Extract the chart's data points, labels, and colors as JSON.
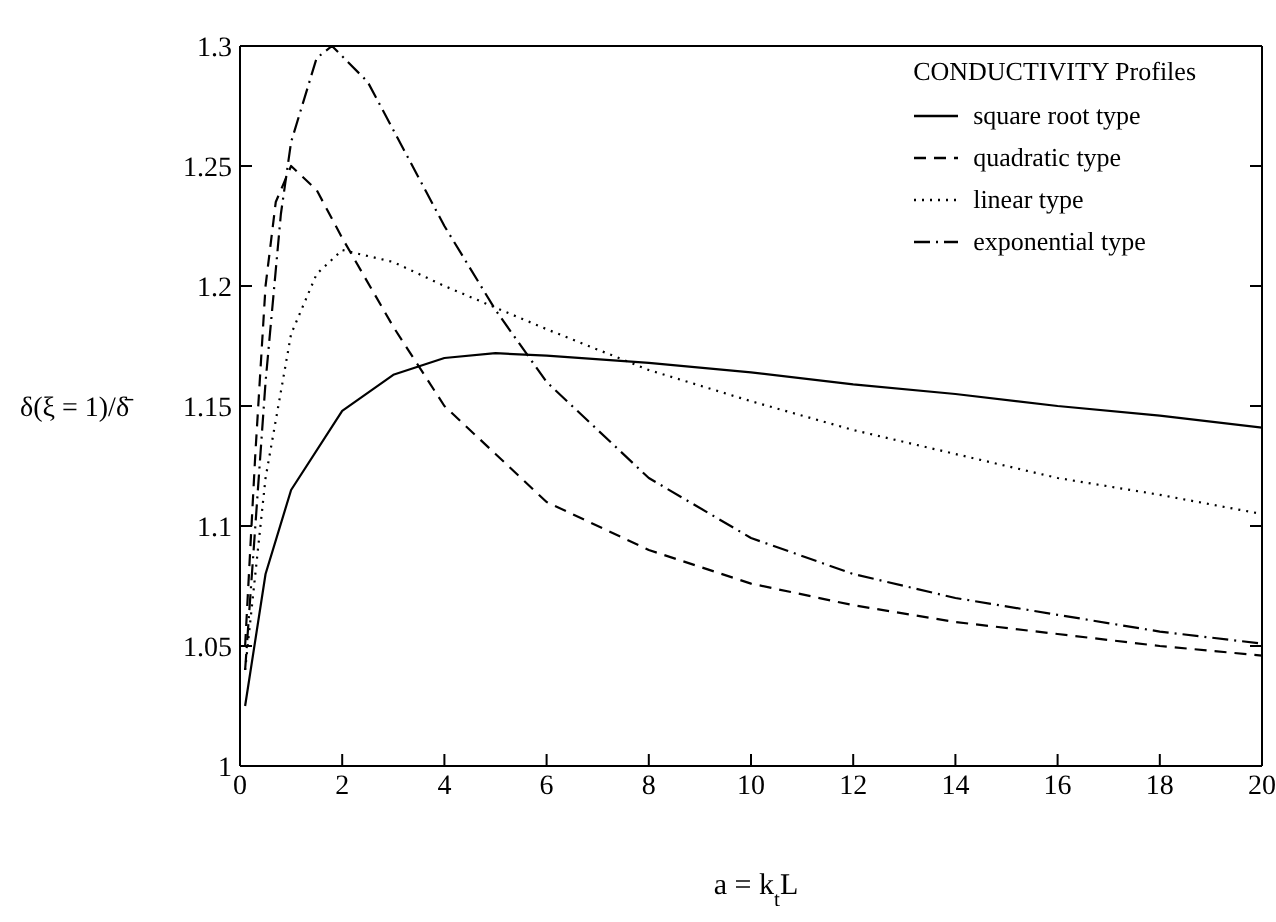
{
  "chart_data": {
    "type": "line",
    "xlabel": "a = k$_{t}$L",
    "ylabel": "δ(ξ = 1)/δ̄",
    "legend_title": "CONDUCTIVITY Profiles",
    "legend": "top right",
    "xlim": [
      0,
      20
    ],
    "xticks": [
      0,
      2,
      4,
      6,
      8,
      10,
      12,
      14,
      16,
      18,
      20
    ],
    "ylim": [
      1,
      1.3
    ],
    "yticks": [
      1,
      1.05,
      1.1,
      1.15,
      1.2,
      1.25,
      1.3
    ],
    "series": [
      {
        "name": "square root type",
        "color": "#000000",
        "line_style": "solid",
        "x": [
          0.1,
          0.5,
          1,
          2,
          3,
          4,
          5,
          6,
          8,
          10,
          12,
          14,
          16,
          18,
          20
        ],
        "values": [
          1.025,
          1.08,
          1.115,
          1.148,
          1.163,
          1.17,
          1.172,
          1.171,
          1.168,
          1.164,
          1.159,
          1.155,
          1.15,
          1.146,
          1.141
        ]
      },
      {
        "name": "quadratic type",
        "color": "#000000",
        "line_style": "dashed",
        "x": [
          0.1,
          0.3,
          0.5,
          0.7,
          1,
          1.5,
          2,
          3,
          4,
          5,
          6,
          8,
          10,
          12,
          14,
          16,
          18,
          20
        ],
        "values": [
          1.05,
          1.13,
          1.2,
          1.235,
          1.25,
          1.24,
          1.22,
          1.183,
          1.15,
          1.13,
          1.11,
          1.09,
          1.076,
          1.067,
          1.06,
          1.055,
          1.05,
          1.046
        ]
      },
      {
        "name": "linear type",
        "color": "#000000",
        "line_style": "dotted",
        "x": [
          0.1,
          0.5,
          1,
          1.5,
          2,
          3,
          4,
          6,
          8,
          10,
          12,
          14,
          16,
          18,
          20
        ],
        "values": [
          1.04,
          1.12,
          1.18,
          1.205,
          1.215,
          1.21,
          1.2,
          1.182,
          1.165,
          1.152,
          1.14,
          1.13,
          1.12,
          1.113,
          1.105
        ]
      },
      {
        "name": "exponential type",
        "color": "#000000",
        "line_style": "dashdot",
        "x": [
          0.1,
          0.3,
          0.5,
          0.8,
          1,
          1.5,
          1.8,
          2.5,
          3,
          4,
          5,
          6,
          7,
          8,
          10,
          12,
          14,
          16,
          18,
          20
        ],
        "values": [
          1.04,
          1.1,
          1.16,
          1.23,
          1.26,
          1.295,
          1.3,
          1.285,
          1.265,
          1.225,
          1.19,
          1.16,
          1.14,
          1.12,
          1.095,
          1.08,
          1.07,
          1.063,
          1.056,
          1.051
        ]
      }
    ]
  }
}
